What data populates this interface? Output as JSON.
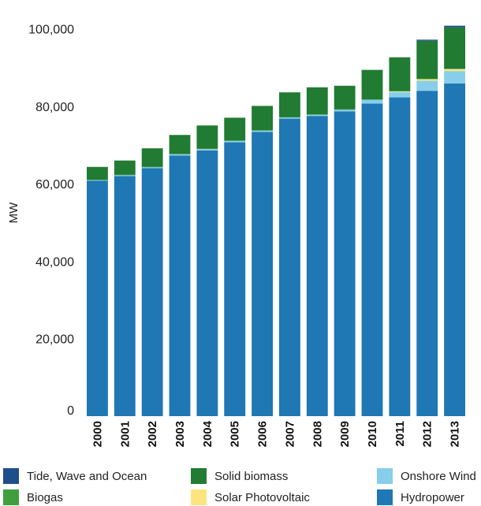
{
  "chart_data": {
    "type": "bar",
    "stacked": true,
    "ylabel": "MW",
    "ylim": [
      0,
      105000
    ],
    "yticks": [
      0,
      20000,
      40000,
      60000,
      80000,
      100000
    ],
    "ytick_labels": [
      "0",
      "20,000",
      "40,000",
      "60,000",
      "80,000",
      "100,000"
    ],
    "categories": [
      "2000",
      "2001",
      "2002",
      "2003",
      "2004",
      "2005",
      "2006",
      "2007",
      "2008",
      "2009",
      "2010",
      "2011",
      "2012",
      "2013"
    ],
    "grid": false,
    "legend_position": "bottom",
    "series": [
      {
        "name": "Hydropower",
        "color": "#1f77b4",
        "values": [
          60800,
          62000,
          64000,
          67300,
          68600,
          70700,
          73400,
          76800,
          77500,
          78700,
          80700,
          82300,
          84000,
          85900
        ]
      },
      {
        "name": "Onshore Wind",
        "color": "#87ceeb",
        "values": [
          150,
          200,
          250,
          300,
          350,
          350,
          300,
          300,
          300,
          400,
          1000,
          1400,
          2600,
          3200
        ]
      },
      {
        "name": "Solar Photovoltaic",
        "color": "#fde47f",
        "values": [
          0,
          0,
          0,
          0,
          0,
          0,
          0,
          0,
          0,
          0,
          0,
          150,
          400,
          500
        ]
      },
      {
        "name": "Biogas",
        "color": "#3f9f3f",
        "values": [
          100,
          100,
          100,
          100,
          100,
          100,
          100,
          100,
          100,
          100,
          100,
          100,
          100,
          100
        ]
      },
      {
        "name": "Solid biomass",
        "color": "#217b32",
        "values": [
          3300,
          3700,
          4800,
          4900,
          6000,
          5900,
          6300,
          6400,
          7000,
          6100,
          7600,
          8700,
          9800,
          10700
        ]
      },
      {
        "name": "Tide, Wave and Ocean",
        "color": "#1f4e8c",
        "values": [
          0,
          0,
          0,
          0,
          0,
          0,
          0,
          0,
          0,
          0,
          0,
          0,
          300,
          400
        ]
      }
    ]
  },
  "legend": {
    "items": [
      {
        "label": "Tide, Wave and Ocean",
        "color": "#1f4e8c"
      },
      {
        "label": "Solid biomass",
        "color": "#217b32"
      },
      {
        "label": "Onshore Wind",
        "color": "#87ceeb"
      },
      {
        "label": "Biogas",
        "color": "#3f9f3f"
      },
      {
        "label": "Solar Photovoltaic",
        "color": "#fde47f"
      },
      {
        "label": "Hydropower",
        "color": "#1f77b4"
      }
    ]
  }
}
